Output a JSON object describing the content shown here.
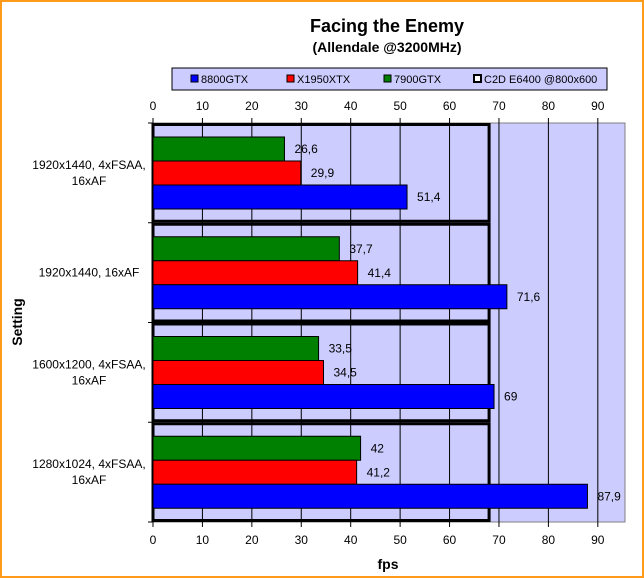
{
  "chart_data": {
    "type": "bar",
    "orientation": "horizontal",
    "title": "Facing the Enemy",
    "subtitle": "(Allendale @3200MHz)",
    "xlabel": "fps",
    "ylabel": "Setting",
    "xlim": [
      0,
      95.5
    ],
    "xticks": [
      0,
      10,
      20,
      30,
      40,
      50,
      60,
      70,
      80,
      90
    ],
    "grid": true,
    "legend_position": "top",
    "categories": [
      [
        "1920x1440, 4xFSAA,",
        "16xAF"
      ],
      [
        "1920x1440, 16xAF"
      ],
      [
        "1600x1200, 4xFSAA,",
        "16xAF"
      ],
      [
        "1280x1024, 4xFSAA,",
        "16xAF"
      ]
    ],
    "series": [
      {
        "name": "8800GTX",
        "color": "#0000ff",
        "values": [
          51.4,
          71.6,
          69,
          87.9
        ],
        "labels": [
          "51,4",
          "71,6",
          "69",
          "87,9"
        ]
      },
      {
        "name": "X1950XTX",
        "color": "#ff0000",
        "values": [
          29.9,
          41.4,
          34.5,
          41.2
        ],
        "labels": [
          "29,9",
          "41,4",
          "34,5",
          "41,2"
        ]
      },
      {
        "name": "7900GTX",
        "color": "#008000",
        "values": [
          26.6,
          37.7,
          33.5,
          42
        ],
        "labels": [
          "26,6",
          "37,7",
          "33,5",
          "42"
        ]
      },
      {
        "name": "C2D E6400 @800x600",
        "color": "#ffffff",
        "values": [
          68,
          68,
          68,
          68
        ],
        "labels": [],
        "style": "outline"
      }
    ],
    "colors": {
      "plot_bg": "#ccccff",
      "legend_bg": "#ccccff",
      "frame": "#ff9a1a"
    }
  }
}
